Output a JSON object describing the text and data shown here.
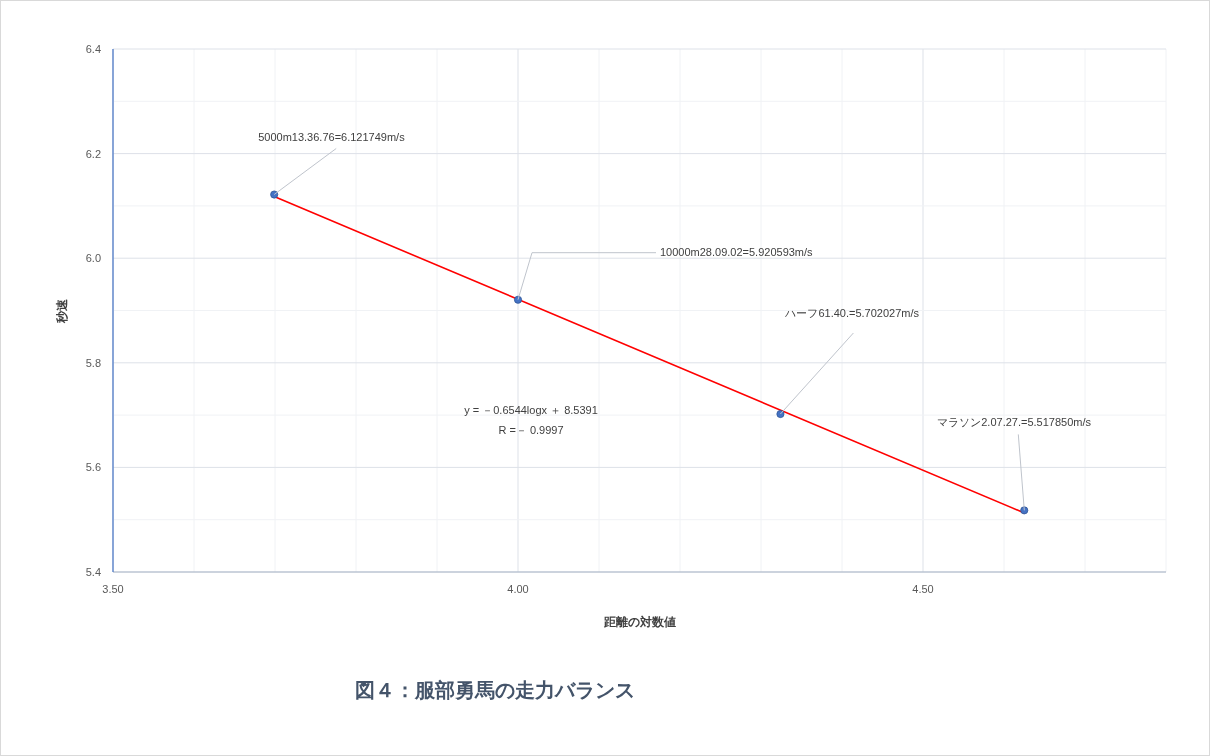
{
  "chart_data": {
    "type": "scatter",
    "title": "図４：服部勇馬の走力バランス",
    "xlabel": "距離の対数値",
    "ylabel": "秒速",
    "xlim": [
      3.5,
      4.8
    ],
    "xticks": [
      {
        "value": 3.5,
        "label": "3.50"
      },
      {
        "value": 3.6,
        "label": null
      },
      {
        "value": 3.7,
        "label": null
      },
      {
        "value": 3.8,
        "label": null
      },
      {
        "value": 3.9,
        "label": null
      },
      {
        "value": 4.0,
        "label": "4.00"
      },
      {
        "value": 4.1,
        "label": null
      },
      {
        "value": 4.2,
        "label": null
      },
      {
        "value": 4.3,
        "label": null
      },
      {
        "value": 4.4,
        "label": null
      },
      {
        "value": 4.5,
        "label": "4.50"
      },
      {
        "value": 4.6,
        "label": null
      },
      {
        "value": 4.7,
        "label": null
      },
      {
        "value": 4.8,
        "label": null
      }
    ],
    "ylim": [
      5.4,
      6.4
    ],
    "yticks": [
      {
        "value": 5.4,
        "label": "5.4"
      },
      {
        "value": 5.5,
        "label": null
      },
      {
        "value": 5.6,
        "label": "5.6"
      },
      {
        "value": 5.7,
        "label": null
      },
      {
        "value": 5.8,
        "label": "5.8"
      },
      {
        "value": 5.9,
        "label": null
      },
      {
        "value": 6.0,
        "label": "6.0"
      },
      {
        "value": 6.1,
        "label": null
      },
      {
        "value": 6.2,
        "label": "6.2"
      },
      {
        "value": 6.3,
        "label": null
      },
      {
        "value": 6.4,
        "label": "6.4"
      }
    ],
    "grid": true,
    "marker": "circle",
    "series": [
      {
        "color": "#4472c4",
        "x": [
          3.699,
          4.0,
          4.324,
          4.625
        ],
        "values": [
          6.121749,
          5.920593,
          5.702027,
          5.51785
        ],
        "value_labels": [
          "5000m13.36.76=6.121749m/s",
          "10000m28.09.02=5.920593m/s",
          "ハーフ61.40.=5.702027m/s",
          "マラソン2.07.27.=5.517850m/s"
        ]
      },
      {
        "type": "line",
        "color": "#ff0000",
        "marker": "none",
        "x": [
          3.699,
          4.625
        ],
        "values": [
          6.118,
          5.513
        ]
      }
    ],
    "annotations": [
      "y = －0.6544logx ＋ 8.5391",
      "R =－ 0.9997"
    ]
  }
}
